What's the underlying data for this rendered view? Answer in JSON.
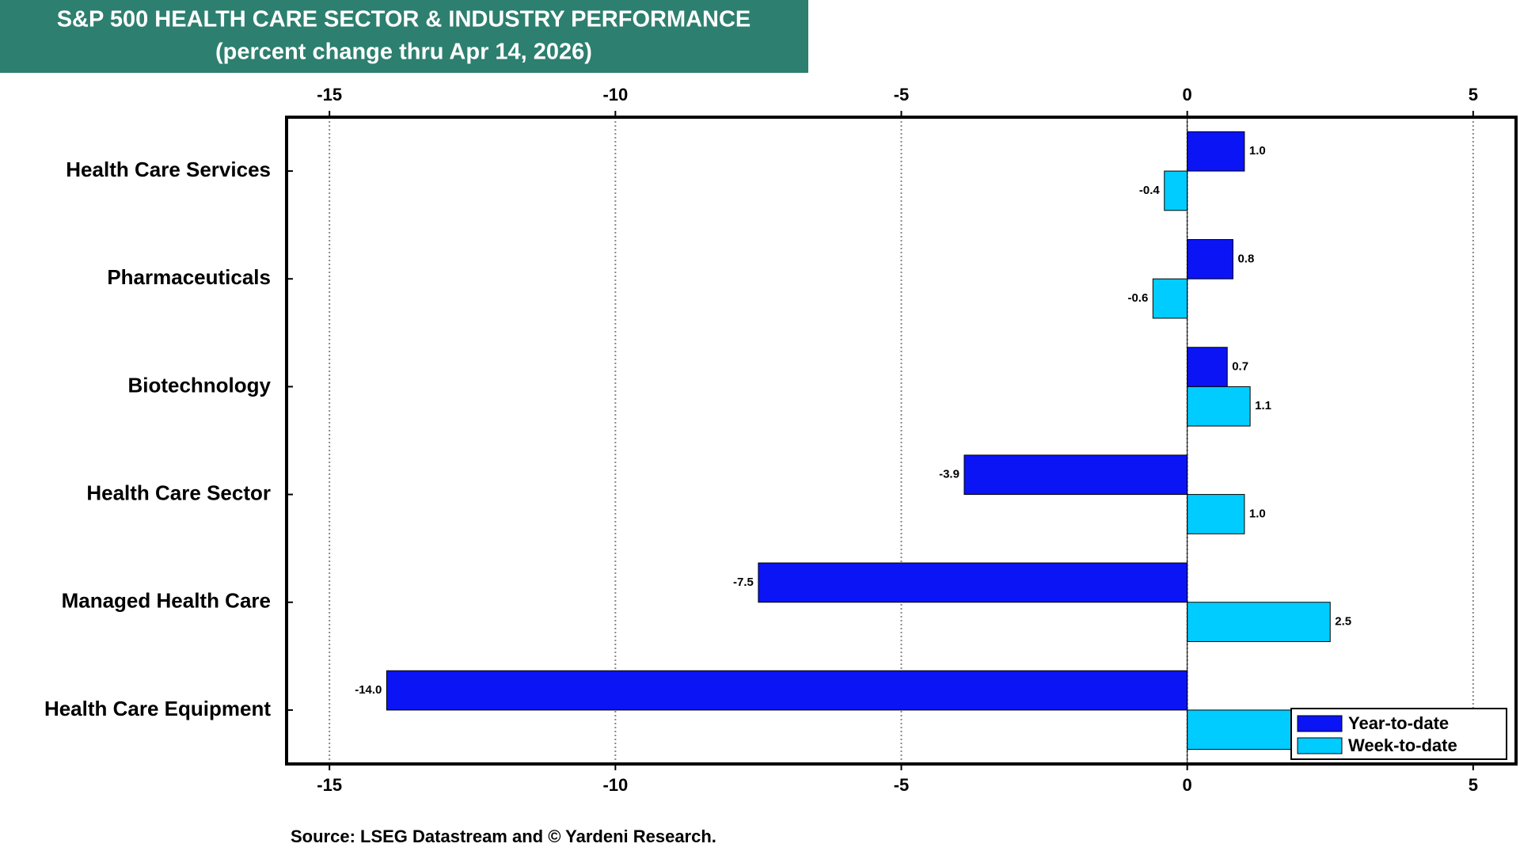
{
  "chart_data": {
    "type": "hbar",
    "title": "S&P 500 HEALTH CARE SECTOR & INDUSTRY PERFORMANCE",
    "subtitle": "(percent change thru Apr 14, 2026)",
    "source": "Source: LSEG Datastream and © Yardeni Research.",
    "categories": [
      "Health Care Services",
      "Pharmaceuticals",
      "Biotechnology",
      "Health Care Sector",
      "Managed Health Care",
      "Health Care Equipment"
    ],
    "series": [
      {
        "name": "Year-to-date",
        "color": "#0a14f5",
        "values": [
          1.0,
          0.8,
          0.7,
          -3.9,
          -7.5,
          -14.0
        ],
        "value_labels": [
          "1.0",
          "0.8",
          "0.7",
          "-3.9",
          "-7.5",
          "-14.0"
        ]
      },
      {
        "name": "Week-to-date",
        "color": "#00ccff",
        "values": [
          -0.4,
          -0.6,
          1.1,
          1.0,
          2.5,
          2.0
        ],
        "value_labels": [
          "-0.4",
          "-0.6",
          "1.1",
          "1.0",
          "2.5",
          null
        ]
      }
    ],
    "xlim": [
      -15.75,
      5.75
    ],
    "xticks": [
      -15,
      -10,
      -5,
      0,
      5
    ],
    "grid": true,
    "legend": "bottom-right"
  }
}
